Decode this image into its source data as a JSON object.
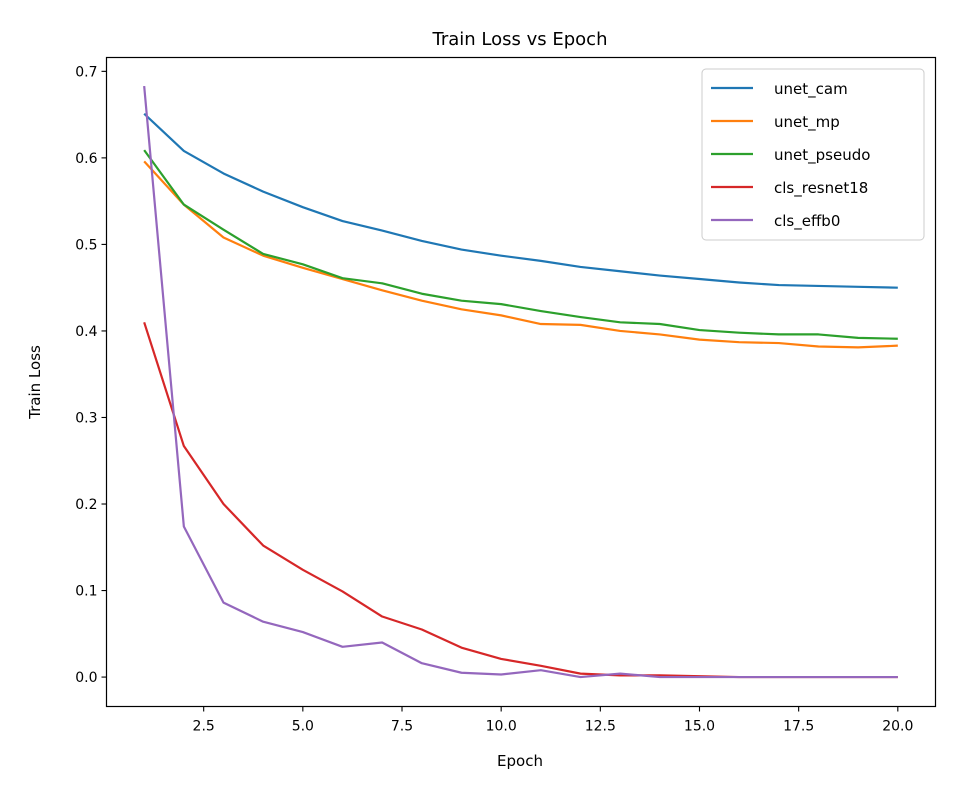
{
  "chart_data": {
    "type": "line",
    "title": "Train Loss vs Epoch",
    "xlabel": "Epoch",
    "ylabel": "Train Loss",
    "xlim": [
      0.05,
      20.95
    ],
    "ylim": [
      -0.034,
      0.716
    ],
    "xticks": [
      2.5,
      5.0,
      7.5,
      10.0,
      12.5,
      15.0,
      17.5,
      20.0
    ],
    "xtick_labels": [
      "2.5",
      "5.0",
      "7.5",
      "10.0",
      "12.5",
      "15.0",
      "17.5",
      "20.0"
    ],
    "yticks": [
      0.0,
      0.1,
      0.2,
      0.3,
      0.4,
      0.5,
      0.6,
      0.7
    ],
    "ytick_labels": [
      "0.0",
      "0.1",
      "0.2",
      "0.3",
      "0.4",
      "0.5",
      "0.6",
      "0.7"
    ],
    "grid": false,
    "legend_position": "top-right",
    "x": [
      1,
      2,
      3,
      4,
      5,
      6,
      7,
      8,
      9,
      10,
      11,
      12,
      13,
      14,
      15,
      16,
      17,
      18,
      19,
      20
    ],
    "series": [
      {
        "name": "unet_cam",
        "color": "#1f77b4",
        "values": [
          0.651,
          0.608,
          0.582,
          0.561,
          0.543,
          0.527,
          0.516,
          0.504,
          0.494,
          0.487,
          0.481,
          0.474,
          0.469,
          0.464,
          0.46,
          0.456,
          0.453,
          0.452,
          0.451,
          0.45
        ]
      },
      {
        "name": "unet_mp",
        "color": "#ff7f0e",
        "values": [
          0.596,
          0.546,
          0.508,
          0.487,
          0.473,
          0.46,
          0.447,
          0.435,
          0.425,
          0.418,
          0.408,
          0.407,
          0.4,
          0.396,
          0.39,
          0.387,
          0.386,
          0.382,
          0.381,
          0.383
        ]
      },
      {
        "name": "unet_pseudo",
        "color": "#2ca02c",
        "values": [
          0.609,
          0.546,
          0.517,
          0.489,
          0.477,
          0.461,
          0.455,
          0.443,
          0.435,
          0.431,
          0.423,
          0.416,
          0.41,
          0.408,
          0.401,
          0.398,
          0.396,
          0.396,
          0.392,
          0.391
        ]
      },
      {
        "name": "cls_resnet18",
        "color": "#d62728",
        "values": [
          0.41,
          0.267,
          0.2,
          0.152,
          0.124,
          0.099,
          0.07,
          0.055,
          0.034,
          0.021,
          0.013,
          0.004,
          0.002,
          0.002,
          0.001,
          0.0,
          0.0,
          0.0,
          0.0,
          0.0
        ]
      },
      {
        "name": "cls_effb0",
        "color": "#9467bd",
        "values": [
          0.683,
          0.174,
          0.086,
          0.064,
          0.052,
          0.035,
          0.04,
          0.016,
          0.005,
          0.003,
          0.008,
          0.0,
          0.004,
          0.0,
          0.0,
          0.0,
          0.0,
          0.0,
          0.0,
          0.0
        ]
      }
    ]
  }
}
